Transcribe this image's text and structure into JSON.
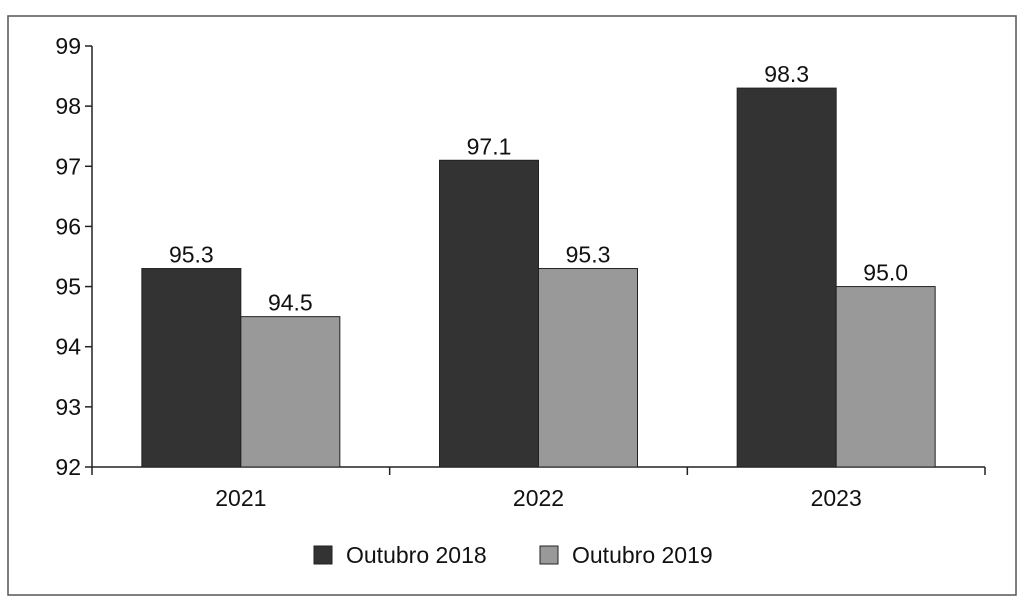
{
  "chart_data": {
    "type": "bar",
    "categories": [
      "2021",
      "2022",
      "2023"
    ],
    "series": [
      {
        "name": "Outubro 2018",
        "values": [
          95.3,
          97.1,
          98.3
        ],
        "labels": [
          "95.3",
          "97.1",
          "98.3"
        ],
        "color": "#333333"
      },
      {
        "name": "Outubro 2019",
        "values": [
          94.5,
          95.3,
          95.0
        ],
        "labels": [
          "94.5",
          "95.3",
          "95.0"
        ],
        "color": "#999999"
      }
    ],
    "yticks": [
      "92",
      "93",
      "94",
      "95",
      "96",
      "97",
      "98",
      "99"
    ],
    "ylim": [
      92,
      99
    ],
    "legend": "bottom",
    "grid": false
  }
}
